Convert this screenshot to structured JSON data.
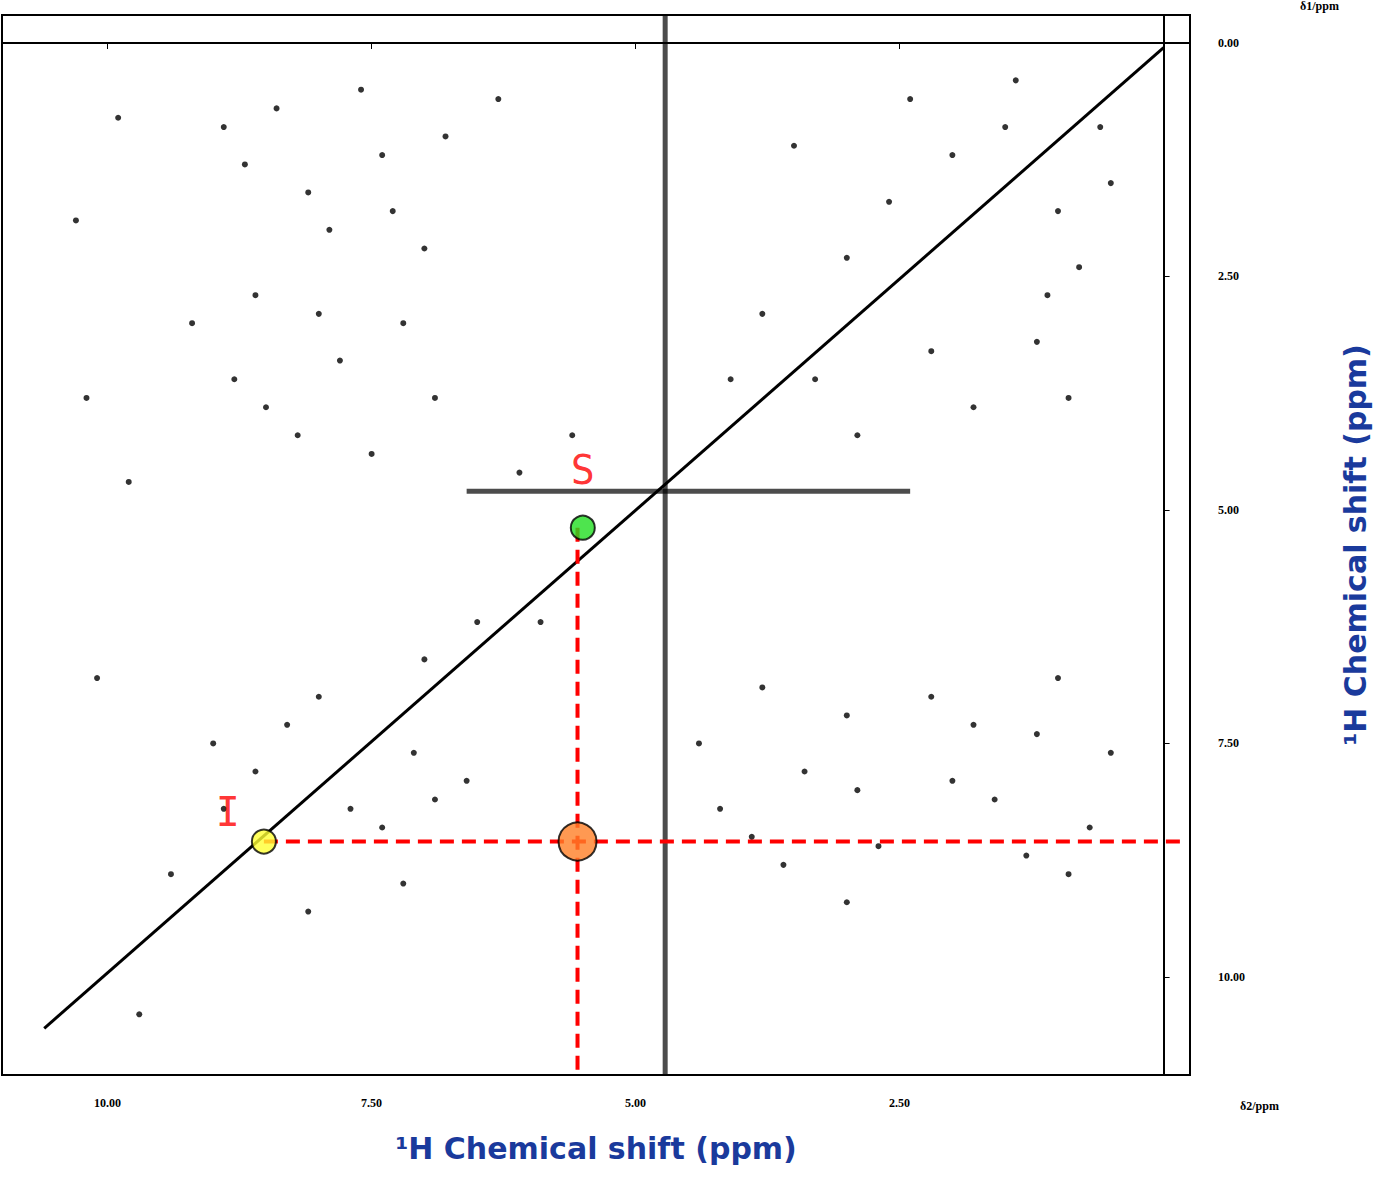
{
  "chart_data": {
    "type": "scatter",
    "x_label": "¹H Chemical shift (ppm)",
    "y_label": "¹H Chemical shift (ppm)",
    "annotations": [
      "δ1/ppm",
      "δ2/ppm"
    ],
    "xlim": [
      11.0,
      -0.25
    ],
    "ylim": [
      -0.3,
      11.05
    ],
    "xticks": [
      {
        "value": 10,
        "label": "10.00"
      },
      {
        "value": 7.5,
        "label": "7.50"
      },
      {
        "value": 5,
        "label": "5.00"
      },
      {
        "value": 2.5,
        "label": "2.50"
      }
    ],
    "yticks": [
      {
        "value": 0,
        "label": "0.00"
      },
      {
        "value": 2.5,
        "label": "2.50"
      },
      {
        "value": 5,
        "label": "5.00"
      },
      {
        "value": 7.5,
        "label": "7.50"
      },
      {
        "value": 10,
        "label": "10.00"
      }
    ],
    "grid": false,
    "series": [
      {
        "type": "scatter",
        "color": "#000000",
        "marker": "circle",
        "x": [
          8.9,
          8.7,
          8.4,
          8.1,
          7.9,
          7.6,
          7.3,
          7.0,
          6.8,
          9.2,
          8.8,
          8.5,
          8.2,
          7.8,
          7.5,
          7.2,
          6.9,
          8.6,
          8.0,
          7.4,
          0.9,
          1.3,
          0.7,
          1.6,
          2.0,
          0.5,
          1.8,
          2.2,
          1.0,
          3.0,
          3.6,
          3.9,
          4.2,
          3.4,
          4.4,
          3.0,
          3.8,
          2.7,
          2.9,
          1.2,
          1.0,
          1.5,
          0.8,
          2.0,
          1.2,
          0.5,
          2.6,
          3.0,
          3.5,
          1.8,
          0.9,
          2.2,
          2.9,
          3.8,
          4.1,
          1.4,
          0.6,
          3.3,
          2.4,
          1.1,
          8.3,
          8.0,
          7.7,
          7.4,
          7.1,
          6.9,
          8.6,
          8.9,
          7.2,
          6.6,
          9.4,
          8.1,
          7.0,
          9.0,
          6.5,
          10.3,
          10.2,
          9.9,
          9.8,
          10.1,
          9.7,
          6.1,
          5.6,
          6.3,
          5.9
        ],
        "y": [
          0.9,
          1.3,
          0.7,
          1.6,
          2.0,
          0.5,
          1.8,
          2.2,
          1.0,
          3.0,
          3.6,
          3.9,
          4.2,
          3.4,
          4.4,
          3.0,
          3.8,
          2.7,
          2.9,
          1.2,
          8.9,
          8.7,
          8.4,
          8.1,
          7.9,
          7.6,
          7.3,
          7.0,
          6.8,
          9.2,
          8.8,
          8.5,
          8.2,
          7.8,
          7.5,
          7.2,
          6.9,
          8.6,
          8.0,
          7.4,
          1.8,
          0.9,
          2.4,
          1.2,
          3.2,
          1.5,
          1.7,
          2.3,
          1.1,
          3.9,
          3.8,
          3.3,
          4.2,
          2.9,
          3.6,
          0.4,
          0.9,
          3.6,
          0.6,
          2.7,
          7.3,
          7.0,
          8.2,
          8.4,
          7.6,
          8.1,
          7.8,
          8.2,
          9.0,
          7.9,
          8.9,
          9.3,
          6.6,
          7.5,
          6.2,
          1.9,
          3.8,
          0.8,
          4.7,
          6.8,
          10.4,
          4.6,
          4.2,
          0.6,
          6.2
        ]
      },
      {
        "type": "line",
        "color": "#000000",
        "line_style": "solid",
        "x": [
          10.6,
          0.0
        ],
        "y": [
          10.55,
          0.05
        ]
      },
      {
        "type": "line",
        "color": "#000000",
        "line_style": "solid",
        "x": [
          4.72,
          4.72
        ],
        "y": [
          -0.3,
          11.05
        ]
      },
      {
        "type": "line",
        "color": "#000000",
        "line_style": "solid",
        "x": [
          6.6,
          2.4
        ],
        "y": [
          4.8,
          4.8
        ]
      },
      {
        "type": "line",
        "color": "#ff0000",
        "line_style": "dashed",
        "x": [
          8.52,
          -0.2
        ],
        "y": [
          8.55,
          8.55
        ]
      },
      {
        "type": "line",
        "color": "#ff0000",
        "line_style": "dashed",
        "x": [
          5.55,
          5.55
        ],
        "y": [
          5.19,
          11.05
        ]
      },
      {
        "type": "scatter",
        "color": "#ffff33",
        "marker": "circle",
        "x": [
          8.52
        ],
        "y": [
          8.55
        ],
        "text": "I"
      },
      {
        "type": "scatter",
        "color": "#22dd22",
        "marker": "circle",
        "x": [
          5.5
        ],
        "y": [
          5.19
        ],
        "text": "S"
      },
      {
        "type": "scatter",
        "color": "#ff7f27",
        "marker": "circle",
        "x": [
          5.55
        ],
        "y": [
          8.55
        ]
      }
    ]
  }
}
